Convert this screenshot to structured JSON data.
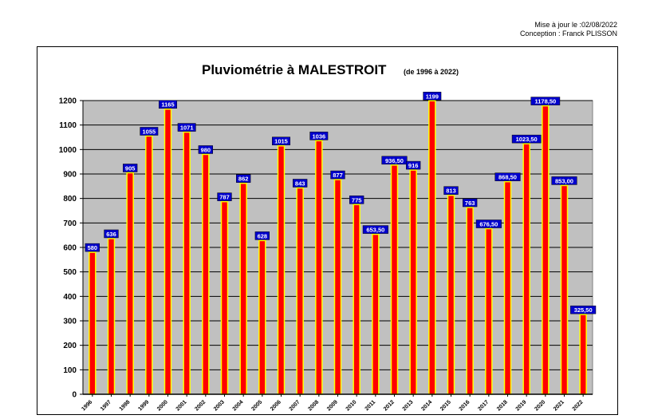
{
  "header": {
    "update_line": "Mise à jour le :02/08/2022",
    "author_line": "Conception : Franck PLISSON"
  },
  "chart_data": {
    "type": "bar",
    "title": "Pluviométrie à MALESTROIT",
    "subtitle": "(de 1996 à 2022)",
    "xlabel": "",
    "ylabel": "",
    "ylim": [
      0,
      1200
    ],
    "yticks": [
      0,
      100,
      200,
      300,
      400,
      500,
      600,
      700,
      800,
      900,
      1000,
      1100,
      1200
    ],
    "grid": true,
    "categories": [
      "1996",
      "1997",
      "1998",
      "1999",
      "2000",
      "2001",
      "2002",
      "2003",
      "2004",
      "2005",
      "2006",
      "2007",
      "2008",
      "2009",
      "2010",
      "2011",
      "2012",
      "2013",
      "2014",
      "2015",
      "2016",
      "2017",
      "2018",
      "2019",
      "2020",
      "2021",
      "2022"
    ],
    "values": [
      580,
      636,
      905,
      1055,
      1165,
      1071,
      980,
      787,
      862,
      628,
      1015,
      843,
      1036,
      877,
      775,
      653.5,
      936.5,
      916,
      1199,
      813,
      763,
      676.5,
      868.5,
      1023.5,
      1178.5,
      853,
      325.5
    ],
    "data_labels": [
      "580",
      "636",
      "905",
      "1055",
      "1165",
      "1071",
      "980",
      "787",
      "862",
      "628",
      "1015",
      "843",
      "1036",
      "877",
      "775",
      "653,50",
      "936,50",
      "916",
      "1199",
      "813",
      "763",
      "676,50",
      "868,50",
      "1023,50",
      "1178,50",
      "853,00",
      "325,50"
    ],
    "colors": {
      "plot_background": "#c0c0c0",
      "bar_fill": "#ff0000",
      "bar_border": "#ffff00",
      "label_background": "#0000cc",
      "label_text": "#ffffff"
    }
  }
}
